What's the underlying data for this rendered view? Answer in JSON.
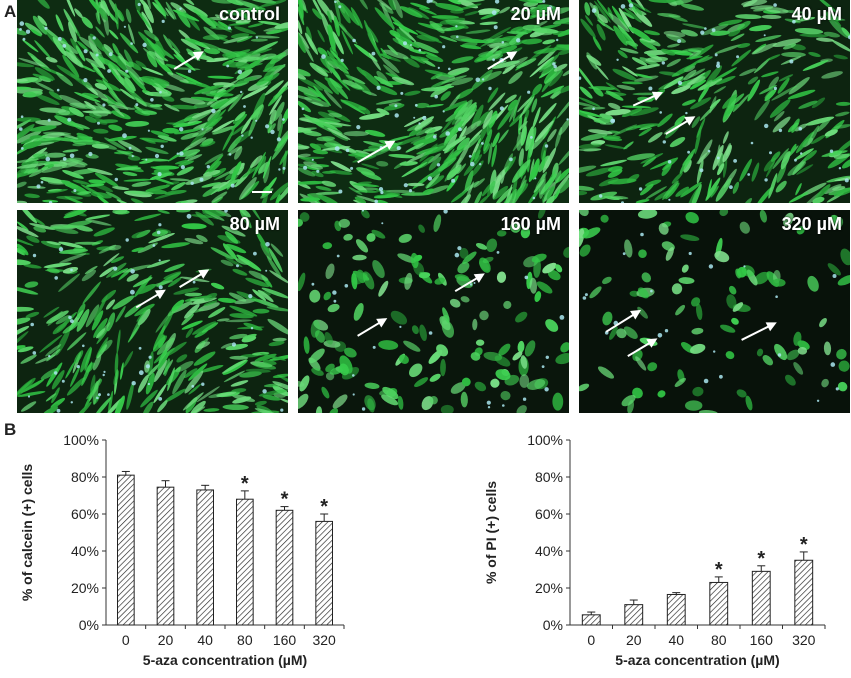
{
  "panel_a": {
    "letter": "A",
    "images": [
      {
        "label": "control",
        "density": "high",
        "arrows": 1
      },
      {
        "label": "20 µM",
        "density": "high",
        "arrows": 2
      },
      {
        "label": "40 µM",
        "density": "medium",
        "arrows": 2
      },
      {
        "label": "80 µM",
        "density": "medium",
        "arrows": 2
      },
      {
        "label": "160 µM",
        "density": "low",
        "arrows": 2
      },
      {
        "label": "320 µM",
        "density": "very-low",
        "arrows": 3
      }
    ],
    "colors": {
      "cell": "#37c24a",
      "background": "#0b1a0c",
      "dead_cell": "#a9e6f0"
    }
  },
  "panel_b": {
    "letter": "B"
  },
  "chart_data": [
    {
      "type": "bar",
      "categories": [
        "0",
        "20",
        "40",
        "80",
        "160",
        "320"
      ],
      "values": [
        81,
        74.5,
        73,
        68,
        62,
        56
      ],
      "errors": [
        2,
        3.5,
        2.5,
        4.5,
        2,
        4
      ],
      "significant": [
        false,
        false,
        false,
        true,
        true,
        true
      ],
      "significance_marker": "*",
      "xlabel": "5-aza concentration (µM)",
      "ylabel": "% of calcein (+) cells",
      "ylim": [
        0,
        100
      ],
      "yticks": [
        "0%",
        "20%",
        "40%",
        "60%",
        "80%",
        "100%"
      ],
      "bar_fill": "hatched"
    },
    {
      "type": "bar",
      "categories": [
        "0",
        "20",
        "40",
        "80",
        "160",
        "320"
      ],
      "values": [
        5.5,
        11,
        16.5,
        23,
        29,
        35
      ],
      "errors": [
        1.5,
        2.5,
        1,
        3,
        3,
        4.5
      ],
      "significant": [
        false,
        false,
        false,
        true,
        true,
        true
      ],
      "significance_marker": "*",
      "xlabel": "5-aza concentration (µM)",
      "ylabel": "% of PI (+) cells",
      "ylim": [
        0,
        100
      ],
      "yticks": [
        "0%",
        "20%",
        "40%",
        "60%",
        "80%",
        "100%"
      ],
      "bar_fill": "hatched"
    }
  ]
}
